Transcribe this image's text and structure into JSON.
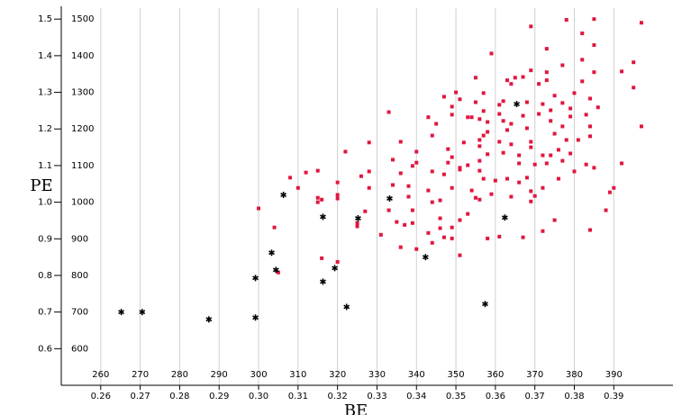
{
  "chart_data": {
    "type": "scatter",
    "xlabel": "BE",
    "ylabel": "PE",
    "xlim": [
      0.25,
      0.405
    ],
    "ylim": [
      0.5,
      1.53
    ],
    "x2lim": [
      250,
      405
    ],
    "y2lim": [
      500,
      1530
    ],
    "xticks": [
      0.26,
      0.27,
      0.28,
      0.29,
      {
        "value": 0.3,
        "label": "0.30"
      },
      0.31,
      0.32,
      0.33,
      0.34,
      0.35,
      0.36,
      0.37,
      0.38,
      0.39
    ],
    "x2ticks": [
      260,
      270,
      280,
      290,
      300,
      310,
      320,
      330,
      340,
      350,
      360,
      370,
      380,
      390
    ],
    "yticks": [
      0.6,
      0.7,
      0.8,
      0.9,
      {
        "value": 1,
        "label": "1.0"
      },
      1.1,
      1.2,
      1.3,
      1.4,
      1.5
    ],
    "y2ticks": [
      600,
      700,
      800,
      900,
      1000,
      1100,
      1200,
      1300,
      1400,
      1500
    ],
    "grid": "x",
    "series": [
      {
        "color": "#e0163f",
        "marker": "square",
        "x": [
          0.3,
          0.304,
          0.305,
          0.308,
          0.31,
          0.312,
          0.315,
          0.315,
          0.315,
          0.316,
          0.316,
          0.32,
          0.32,
          0.32,
          0.32,
          0.322,
          0.325,
          0.325,
          0.326,
          0.327,
          0.328,
          0.328,
          0.328,
          0.331,
          0.333,
          0.333,
          0.334,
          0.334,
          0.335,
          0.336,
          0.336,
          0.336,
          0.337,
          0.338,
          0.338,
          0.339,
          0.339,
          0.339,
          0.34,
          0.34,
          0.34,
          0.343,
          0.343,
          0.343,
          0.344,
          0.344,
          0.344,
          0.344,
          0.345,
          0.346,
          0.346,
          0.346,
          0.347,
          0.347,
          0.347,
          0.348,
          0.348,
          0.349,
          0.349,
          0.349,
          0.349,
          0.349,
          0.349,
          0.35,
          0.351,
          0.351,
          0.351,
          0.351,
          0.351,
          0.352,
          0.353,
          0.353,
          0.353,
          0.354,
          0.354,
          0.355,
          0.355,
          0.355,
          0.356,
          0.356,
          0.356,
          0.356,
          0.356,
          0.356,
          0.357,
          0.357,
          0.357,
          0.357,
          0.358,
          0.358,
          0.358,
          0.358,
          0.359,
          0.359,
          0.36,
          0.361,
          0.361,
          0.361,
          0.361,
          0.362,
          0.362,
          0.362,
          0.363,
          0.363,
          0.363,
          0.364,
          0.364,
          0.364,
          0.364,
          0.365,
          0.366,
          0.366,
          0.366,
          0.367,
          0.367,
          0.367,
          0.368,
          0.368,
          0.368,
          0.369,
          0.369,
          0.369,
          0.369,
          0.369,
          0.369,
          0.37,
          0.37,
          0.371,
          0.371,
          0.372,
          0.372,
          0.372,
          0.372,
          0.373,
          0.373,
          0.373,
          0.373,
          0.374,
          0.374,
          0.374,
          0.375,
          0.375,
          0.375,
          0.376,
          0.376,
          0.377,
          0.377,
          0.377,
          0.377,
          0.378,
          0.378,
          0.379,
          0.379,
          0.379,
          0.38,
          0.38,
          0.381,
          0.382,
          0.382,
          0.382,
          0.383,
          0.383,
          0.384,
          0.384,
          0.384,
          0.384,
          0.385,
          0.385,
          0.385,
          0.385,
          0.386,
          0.388,
          0.389,
          0.39,
          0.392,
          0.392,
          0.395,
          0.395,
          0.397,
          0.397
        ],
        "values": [
          0.983,
          0.931,
          0.808,
          1.067,
          1.039,
          1.081,
          1.086,
          1.012,
          1.0,
          1.007,
          0.847,
          0.837,
          1.02,
          1.01,
          1.054,
          1.138,
          0.934,
          0.943,
          1.071,
          0.975,
          1.039,
          1.084,
          1.163,
          0.911,
          0.978,
          1.246,
          1.047,
          1.116,
          0.946,
          1.079,
          0.877,
          1.165,
          0.938,
          1.015,
          1.044,
          0.978,
          0.943,
          1.099,
          1.138,
          0.872,
          1.108,
          1.232,
          1.032,
          0.916,
          1.0,
          1.182,
          0.889,
          1.084,
          1.214,
          1.005,
          0.956,
          0.929,
          0.904,
          1.076,
          1.288,
          1.145,
          1.108,
          1.039,
          1.123,
          1.239,
          1.261,
          0.931,
          0.901,
          1.3,
          0.855,
          1.281,
          1.094,
          0.951,
          1.089,
          1.163,
          1.101,
          0.968,
          1.232,
          1.232,
          1.032,
          1.34,
          1.012,
          1.273,
          1.227,
          1.007,
          1.113,
          1.17,
          1.153,
          1.086,
          1.182,
          1.249,
          1.064,
          1.298,
          1.219,
          1.131,
          1.192,
          0.901,
          1.022,
          1.406,
          1.059,
          1.165,
          0.906,
          1.266,
          1.241,
          1.135,
          1.222,
          1.276,
          1.197,
          1.064,
          1.333,
          1.015,
          1.323,
          1.158,
          1.214,
          1.34,
          1.106,
          1.128,
          1.054,
          1.236,
          0.904,
          1.342,
          1.202,
          1.273,
          1.067,
          1.03,
          1.15,
          1.165,
          1.36,
          1.002,
          1.48,
          1.017,
          1.103,
          1.241,
          1.323,
          0.921,
          1.128,
          1.268,
          1.039,
          1.419,
          1.106,
          1.355,
          1.333,
          1.222,
          1.128,
          1.251,
          1.291,
          0.951,
          1.187,
          1.143,
          1.064,
          1.271,
          1.374,
          1.207,
          1.113,
          1.17,
          1.498,
          1.256,
          1.234,
          1.133,
          1.084,
          1.298,
          1.17,
          1.461,
          1.33,
          1.389,
          1.103,
          1.239,
          1.283,
          0.924,
          1.207,
          1.18,
          1.094,
          1.5,
          1.355,
          1.429,
          1.259,
          0.978,
          1.027,
          1.039,
          1.357,
          1.106,
          1.382,
          1.313,
          1.49,
          1.207
        ]
      },
      {
        "color": "#000000",
        "marker": "asterisk",
        "x": [
          0.2652,
          0.2705,
          0.2874,
          0.2992,
          0.2992,
          0.3033,
          0.3044,
          0.3063,
          0.3163,
          0.3163,
          0.3193,
          0.3223,
          0.3252,
          0.3332,
          0.3423,
          0.3574,
          0.3624,
          0.3654
        ],
        "values": [
          0.7,
          0.7,
          0.68,
          0.685,
          0.793,
          0.862,
          0.815,
          1.02,
          0.96,
          0.783,
          0.82,
          0.714,
          0.956,
          1.01,
          0.85,
          0.722,
          0.958,
          1.268
        ]
      }
    ]
  }
}
